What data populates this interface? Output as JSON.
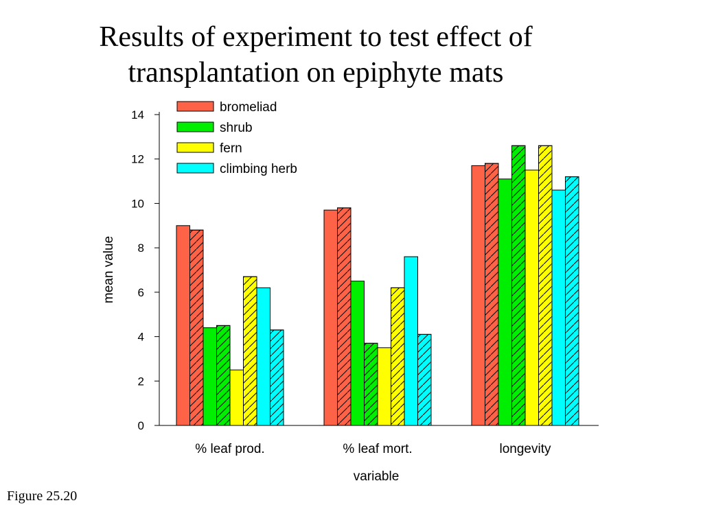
{
  "slide": {
    "title_line1": "Results of experiment to test effect of",
    "title_line2": "transplantation on epiphyte mats",
    "caption": "Figure 25.20"
  },
  "chart_data": {
    "type": "bar",
    "xlabel": "variable",
    "ylabel": "mean value",
    "ylim": [
      0,
      14
    ],
    "yticks": [
      0,
      2,
      4,
      6,
      8,
      10,
      12,
      14
    ],
    "categories": [
      "% leaf prod.",
      "% leaf mort.",
      "longevity"
    ],
    "legend_position": "top-left",
    "grid": false,
    "pattern_note": "each series drawn as a solid bar followed by a hatched bar",
    "series": [
      {
        "name": "bromeliad",
        "color": "#FF6347",
        "solid": [
          9.0,
          9.7,
          11.7
        ],
        "hatched": [
          8.8,
          9.8,
          11.8
        ]
      },
      {
        "name": "shrub",
        "color": "#00EE00",
        "solid": [
          4.4,
          6.5,
          11.1
        ],
        "hatched": [
          4.5,
          3.7,
          12.6
        ]
      },
      {
        "name": "fern",
        "color": "#FFFF00",
        "solid": [
          2.5,
          3.5,
          11.5
        ],
        "hatched": [
          6.7,
          6.2,
          12.6
        ]
      },
      {
        "name": "climbing herb",
        "color": "#00FFFF",
        "solid": [
          6.2,
          7.6,
          10.6
        ],
        "hatched": [
          4.3,
          4.1,
          11.2
        ]
      }
    ]
  }
}
